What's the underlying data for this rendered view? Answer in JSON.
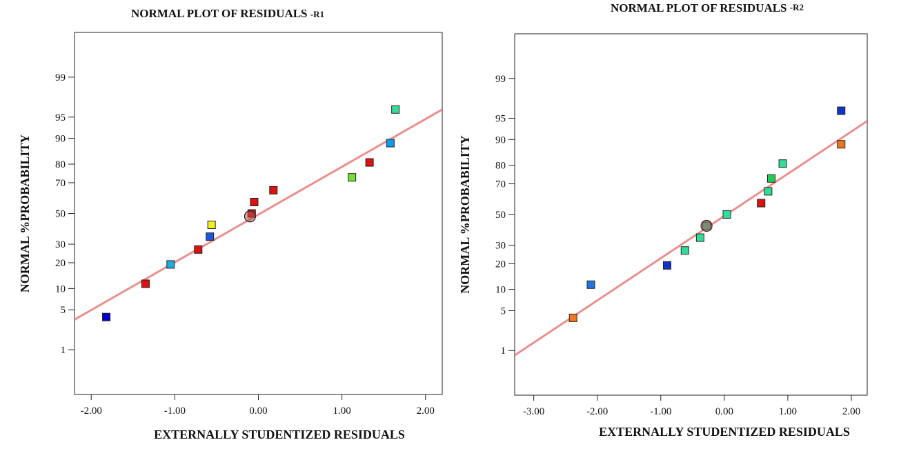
{
  "chart_data": [
    {
      "type": "scatter",
      "title": "NORMAL PLOT OF RESIDUALS",
      "title_suffix": "-R1",
      "xlabel": "EXTERNALLY STUDENTIZED RESIDUALS",
      "ylabel": "NORMAL %PROBABILITY",
      "xlim": [
        -2.2,
        2.2
      ],
      "y_scale": "normal-probability",
      "ylim": [
        0.1,
        99.9
      ],
      "x_ticks": [
        -2,
        -1,
        0,
        1,
        2
      ],
      "x_tick_labels": [
        "-2.00",
        "-1.00",
        "0.00",
        "1.00",
        "2.00"
      ],
      "y_ticks": [
        1,
        5,
        10,
        20,
        30,
        50,
        70,
        80,
        90,
        95,
        99
      ],
      "y_tick_labels": [
        "1",
        "5",
        "10",
        "20",
        "30",
        "50",
        "70",
        "80",
        "90",
        "95",
        "99"
      ],
      "grid": false,
      "line_color": "#e8908e",
      "fit_line": {
        "points": [
          [
            -2.2,
            3.5
          ],
          [
            2.2,
            96.2
          ]
        ]
      },
      "points": [
        {
          "x": -1.82,
          "y": 3.85,
          "color": "#0000cc"
        },
        {
          "x": -1.35,
          "y": 11.5,
          "color": "#dd1111"
        },
        {
          "x": -1.05,
          "y": 19.2,
          "color": "#22aadd"
        },
        {
          "x": -0.72,
          "y": 26.9,
          "color": "#dd1111"
        },
        {
          "x": -0.58,
          "y": 34.6,
          "color": "#2255dd"
        },
        {
          "x": -0.56,
          "y": 42.3,
          "color": "#eeee22"
        },
        {
          "x": -0.08,
          "y": 50.0,
          "color": "#dd1111"
        },
        {
          "x": -0.05,
          "y": 57.7,
          "color": "#dd1111"
        },
        {
          "x": 0.18,
          "y": 65.4,
          "color": "#dd1111"
        },
        {
          "x": 1.12,
          "y": 73.1,
          "color": "#77dd33"
        },
        {
          "x": 1.33,
          "y": 80.8,
          "color": "#dd1111"
        },
        {
          "x": 1.58,
          "y": 88.5,
          "color": "#1199ee"
        },
        {
          "x": 1.64,
          "y": 96.2,
          "color": "#33dd99"
        }
      ],
      "center_marker": {
        "x": -0.1,
        "y": 48.0,
        "color": "#b05050"
      }
    },
    {
      "type": "scatter",
      "title": "NORMAL PLOT OF RESIDUALS",
      "title_suffix": "-R2",
      "xlabel": "EXTERNALLY STUDENTIZED RESIDUALS",
      "ylabel": "NORMAL %PROBABILITY",
      "xlim": [
        -3.3,
        2.25
      ],
      "y_scale": "normal-probability",
      "ylim": [
        0.1,
        99.9
      ],
      "x_ticks": [
        -3,
        -2,
        -1,
        0,
        1,
        2
      ],
      "x_tick_labels": [
        "-3.00",
        "-2.00",
        "-1.00",
        "0.00",
        "1.00",
        "2.00"
      ],
      "y_ticks": [
        1,
        5,
        10,
        20,
        30,
        50,
        70,
        80,
        90,
        95,
        99
      ],
      "y_tick_labels": [
        "1",
        "5",
        "10",
        "20",
        "30",
        "50",
        "70",
        "80",
        "90",
        "95",
        "99"
      ],
      "grid": false,
      "line_color": "#e8908e",
      "fit_line": {
        "points": [
          [
            -3.3,
            0.8
          ],
          [
            2.25,
            94.5
          ]
        ]
      },
      "points": [
        {
          "x": -2.38,
          "y": 3.85,
          "color": "#ee7722"
        },
        {
          "x": -2.1,
          "y": 11.5,
          "color": "#2277dd"
        },
        {
          "x": -0.9,
          "y": 19.2,
          "color": "#1133cc"
        },
        {
          "x": -0.62,
          "y": 26.9,
          "color": "#33dd99"
        },
        {
          "x": -0.38,
          "y": 34.6,
          "color": "#33dd99"
        },
        {
          "x": -0.28,
          "y": 42.3,
          "color": "#33dd99"
        },
        {
          "x": 0.04,
          "y": 50.0,
          "color": "#33dd99"
        },
        {
          "x": 0.58,
          "y": 57.7,
          "color": "#dd1111"
        },
        {
          "x": 0.69,
          "y": 65.4,
          "color": "#33dd99"
        },
        {
          "x": 0.74,
          "y": 73.1,
          "color": "#22cc55"
        },
        {
          "x": 0.92,
          "y": 80.8,
          "color": "#33dd99"
        },
        {
          "x": 1.84,
          "y": 88.5,
          "color": "#ee7722"
        },
        {
          "x": 1.84,
          "y": 96.2,
          "color": "#1133cc"
        }
      ],
      "center_marker": {
        "x": -0.28,
        "y": 42.3,
        "color": "#b05050"
      }
    }
  ]
}
